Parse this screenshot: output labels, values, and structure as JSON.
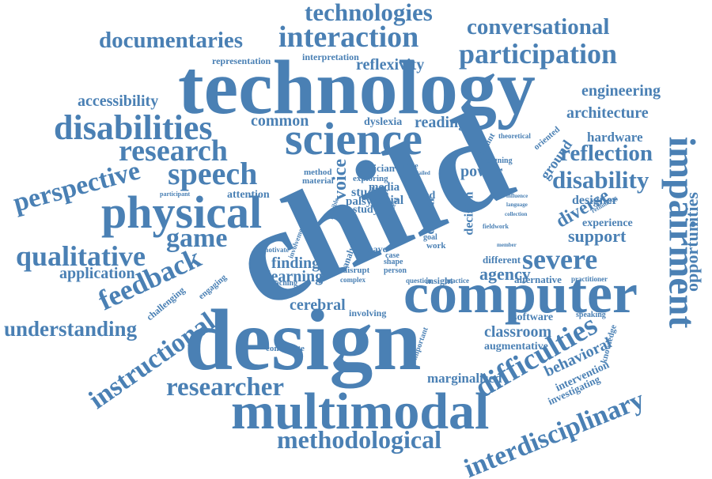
{
  "word_color": "#4a80b4",
  "background_color": "#ffffff",
  "words": [
    "technologies",
    "documentaries",
    "interaction",
    "conversational",
    "participation",
    "representation",
    "interpretation",
    "reflexivity",
    "technology",
    "accessibility",
    "engineering",
    "architecture",
    "disabilities",
    "common",
    "dyslexia",
    "reading",
    "science",
    "research",
    "hardware",
    "theoretical",
    "oriented",
    "ground",
    "reflection",
    "impairment",
    "perspective",
    "speech",
    "power",
    "disability",
    "opportunities",
    "designer",
    "physical",
    "voice",
    "child",
    "diverse",
    "attention",
    "experience",
    "support",
    "qualitative",
    "game",
    "feedback",
    "severe",
    "application",
    "agency",
    "alternative",
    "computer",
    "challenging",
    "engaging",
    "finding",
    "learning",
    "cerebral",
    "understanding",
    "instructional",
    "design",
    "classroom",
    "software",
    "augmentative",
    "difficulties",
    "behavioral",
    "knowledge",
    "intervention",
    "investigating",
    "researcher",
    "multimodal",
    "marginalised",
    "contribute",
    "interdisciplinary",
    "methodological",
    "clinician",
    "involve",
    "exploring",
    "media",
    "studies",
    "palsy",
    "social",
    "based",
    "digital",
    "decision",
    "method",
    "material",
    "study",
    "analysis",
    "have",
    "case",
    "shape",
    "work",
    "goal",
    "insight",
    "different",
    "motivate",
    "involvement",
    "disrupt",
    "complex",
    "person",
    "question",
    "practice",
    "teaching",
    "involving",
    "important",
    "speaking",
    "practitioner",
    "member",
    "participant",
    "designing",
    "influence",
    "language",
    "collection",
    "rethinking",
    "fieldwork",
    "account",
    "possible",
    "detailed",
    "context"
  ]
}
